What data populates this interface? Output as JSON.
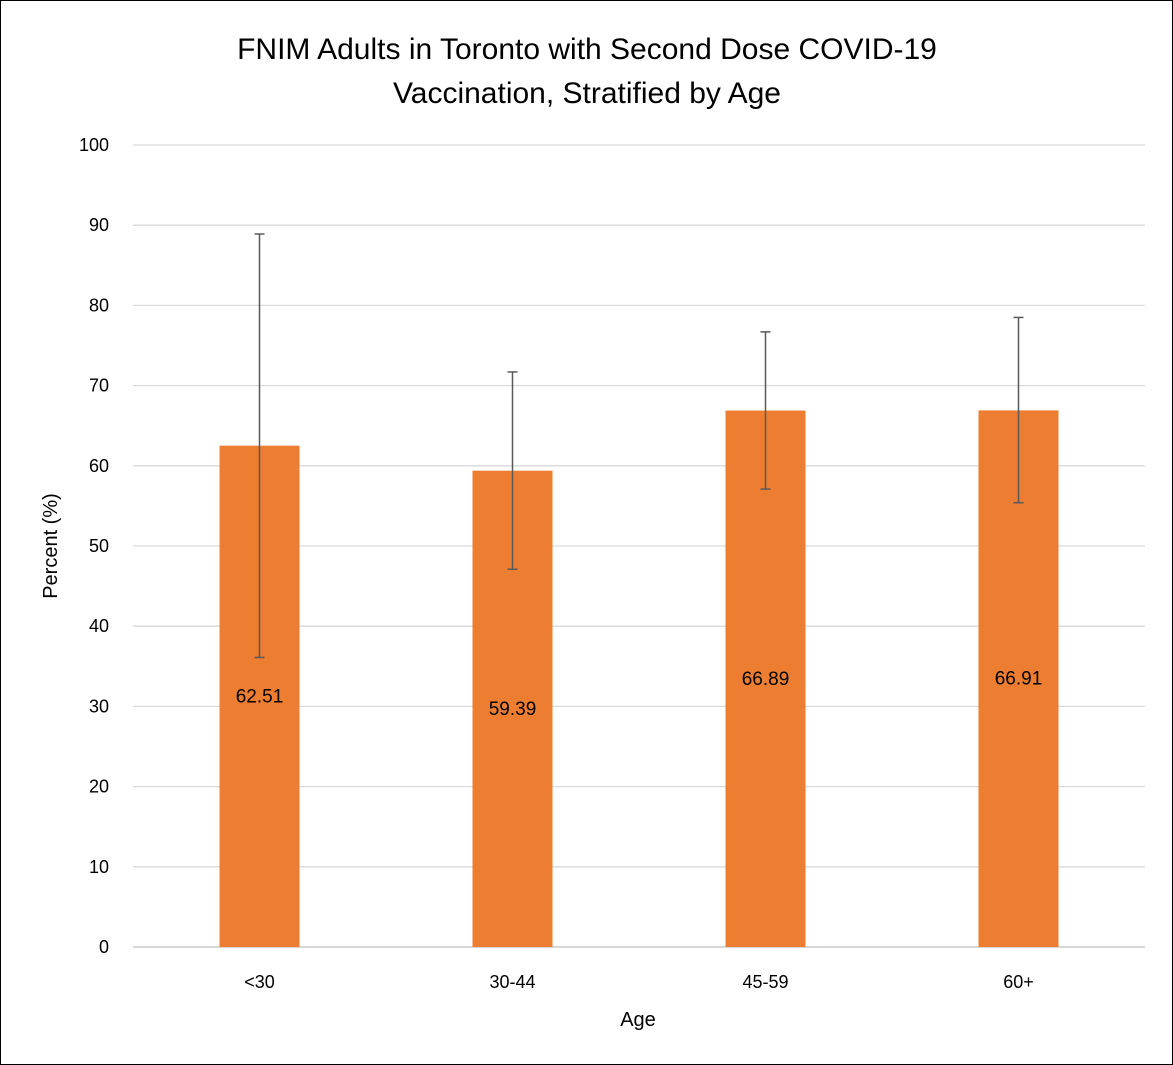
{
  "chart_data": {
    "type": "bar",
    "title": "FNIM Adults in Toronto with Second Dose COVID-19 Vaccination, Stratified by Age",
    "title_lines": [
      "FNIM Adults in Toronto with Second Dose COVID-19",
      "Vaccination, Stratified by Age"
    ],
    "xlabel": "Age",
    "ylabel": "Percent (%)",
    "categories": [
      "<30",
      "30-44",
      "45-59",
      "60+"
    ],
    "values": [
      62.51,
      59.39,
      66.89,
      66.91
    ],
    "value_labels": [
      "62.51",
      "59.39",
      "66.89",
      "66.91"
    ],
    "error_bars": [
      {
        "low": 36.1,
        "high": 88.9
      },
      {
        "low": 47.1,
        "high": 71.7
      },
      {
        "low": 57.1,
        "high": 76.7
      },
      {
        "low": 55.4,
        "high": 78.5
      }
    ],
    "ylim": [
      0,
      100
    ],
    "yticks": [
      0,
      10,
      20,
      30,
      40,
      50,
      60,
      70,
      80,
      90,
      100
    ],
    "grid": true,
    "legend": "none",
    "colors": {
      "bar": "#ED7D31",
      "grid": "#D9D9D9",
      "axis": "#BFBFBF",
      "error_bar": "#595959"
    }
  }
}
